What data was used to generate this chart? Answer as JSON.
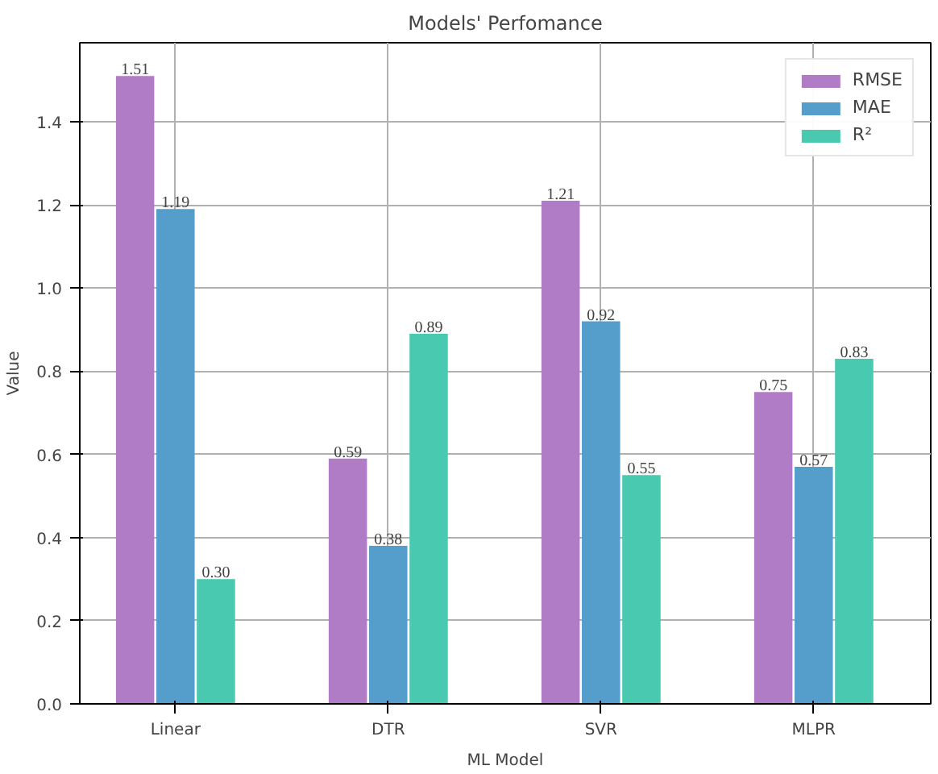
{
  "chart_data": {
    "type": "bar",
    "title": "Models' Perfomance",
    "xlabel": "ML Model",
    "ylabel": "Value",
    "categories": [
      "Linear",
      "DTR",
      "SVR",
      "MLPR"
    ],
    "series": [
      {
        "name": "RMSE",
        "color": "#b07cc6",
        "values": [
          1.51,
          0.59,
          1.21,
          0.75
        ],
        "value_labels": [
          "1.51",
          "0.59",
          "1.21",
          "0.75"
        ]
      },
      {
        "name": "MAE",
        "color": "#559ecb",
        "values": [
          1.19,
          0.38,
          0.92,
          0.57
        ],
        "value_labels": [
          "1.19",
          "0.38",
          "0.92",
          "0.57"
        ]
      },
      {
        "name": "R²",
        "color": "#48c9b0",
        "values": [
          0.3,
          0.89,
          0.55,
          0.83
        ],
        "value_labels": [
          "0.30",
          "0.89",
          "0.55",
          "0.83"
        ]
      }
    ],
    "ylim": [
      0,
      1.59
    ],
    "yticks": [
      {
        "value": 0,
        "label": "0.0"
      },
      0.2,
      0.4,
      0.6,
      0.8,
      {
        "value": 1,
        "label": "1.0"
      },
      1.2,
      1.4
    ],
    "grid": true,
    "legend": "top right"
  }
}
